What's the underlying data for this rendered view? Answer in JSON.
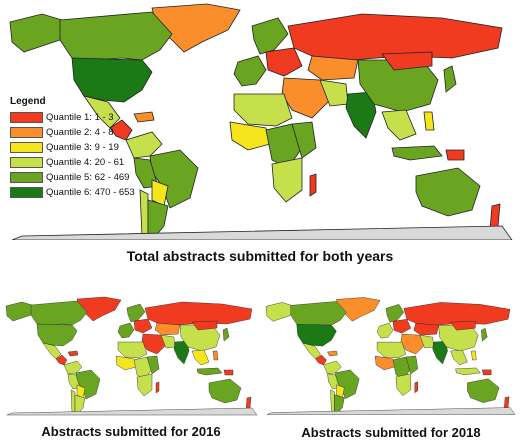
{
  "legend": {
    "title": "Legend",
    "items": [
      {
        "label": "Quantile 1: 1 - 3",
        "color": "#f03b20"
      },
      {
        "label": "Quantile 2: 4 - 8",
        "color": "#f98e2b"
      },
      {
        "label": "Quantile 3: 9 - 19",
        "color": "#f4e51c"
      },
      {
        "label": "Quantile 4: 20 - 61",
        "color": "#c5e04b"
      },
      {
        "label": "Quantile 5: 62 - 469",
        "color": "#6aa521"
      },
      {
        "label": "Quantile 6: 470 - 653",
        "color": "#1b7a15"
      }
    ]
  },
  "colors": {
    "no_data": "#d9d9d9",
    "border": "#222222"
  },
  "maps": {
    "main": {
      "caption": "Total abstracts submitted for both years"
    },
    "y2016": {
      "caption": "Abstracts submitted for 2016"
    },
    "y2018": {
      "caption": "Abstracts submitted for 2018"
    }
  }
}
